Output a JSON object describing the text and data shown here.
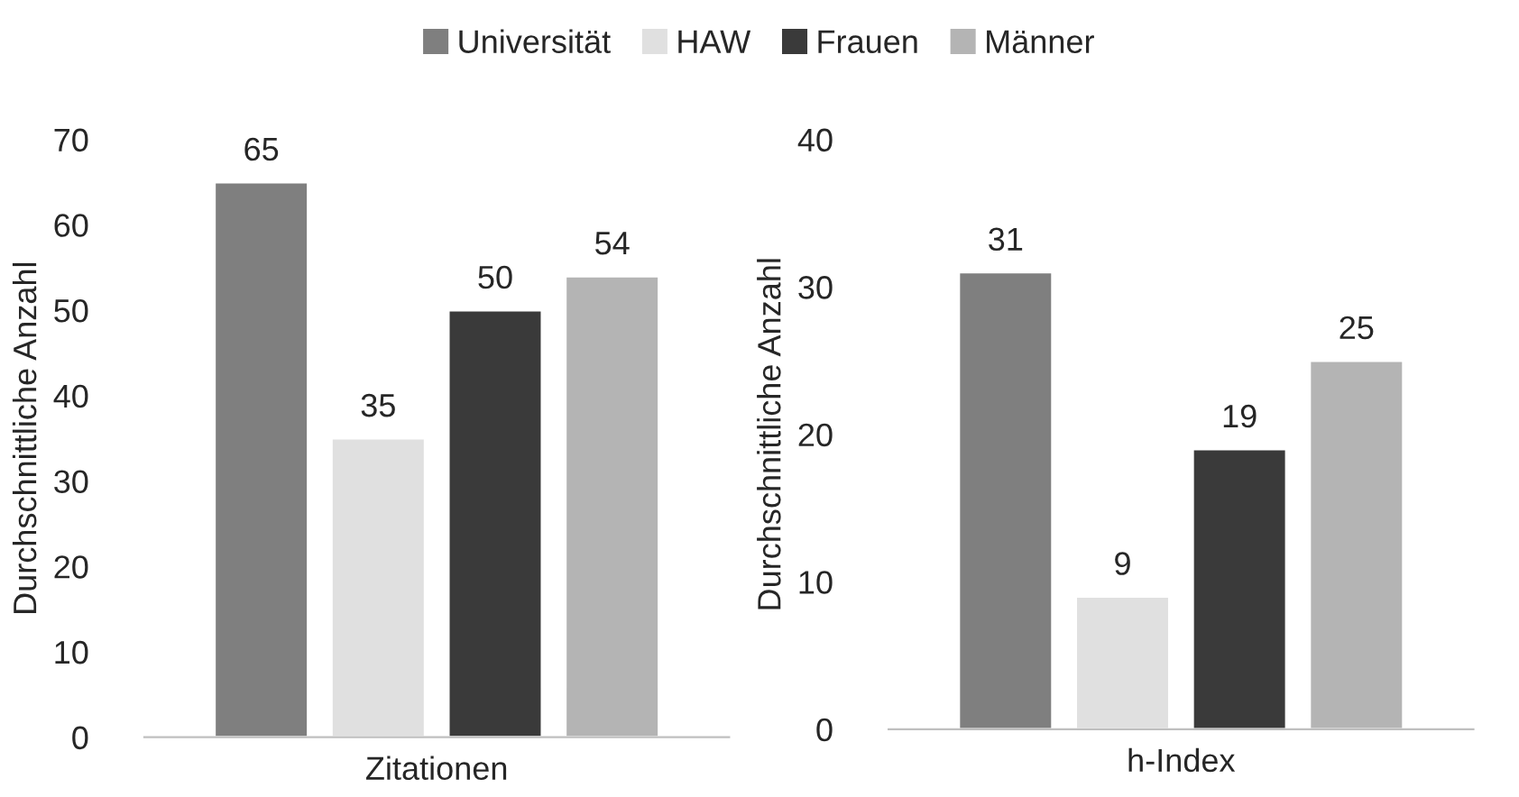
{
  "chart_data": [
    {
      "type": "bar",
      "categories": [
        null
      ],
      "xlabel": "Zitationen",
      "ylabel": "Durchschnittliche Anzahl",
      "ylim": [
        0,
        70
      ],
      "yticks": [
        0,
        10,
        20,
        30,
        40,
        50,
        60,
        70
      ],
      "data_labels": true,
      "legend": "top",
      "grid": false,
      "series": [
        {
          "name": "Universität",
          "color": "#7f7f7f",
          "values": [
            65
          ]
        },
        {
          "name": "HAW",
          "color": "#e0e0e0",
          "values": [
            35
          ]
        },
        {
          "name": "Frauen",
          "color": "#3a3a3a",
          "values": [
            50
          ]
        },
        {
          "name": "Männer",
          "color": "#b4b4b4",
          "values": [
            54
          ]
        }
      ]
    },
    {
      "type": "bar",
      "categories": [
        null
      ],
      "xlabel": "h-Index",
      "ylabel": "Durchschnittliche Anzahl",
      "ylim": [
        0,
        40
      ],
      "yticks": [
        0,
        10,
        20,
        30,
        40
      ],
      "data_labels": true,
      "grid": false,
      "series": [
        {
          "color": "#7f7f7f",
          "values": [
            31
          ]
        },
        {
          "color": "#e0e0e0",
          "values": [
            9
          ]
        },
        {
          "color": "#3a3a3a",
          "values": [
            19
          ]
        },
        {
          "color": "#b4b4b4",
          "values": [
            25
          ]
        }
      ]
    }
  ]
}
